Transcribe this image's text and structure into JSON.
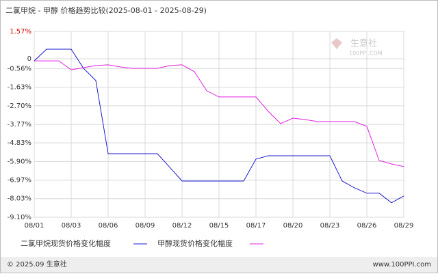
{
  "chart_data": {
    "type": "line",
    "title": "二氯甲烷 - 甲醇 价格趋势比较(2025-08-01 - 2025-08-29)",
    "categories": [
      "08/01",
      null,
      null,
      "08/03",
      null,
      null,
      "08/06",
      null,
      null,
      "08/09",
      null,
      null,
      "08/12",
      null,
      null,
      "08/15",
      null,
      null,
      "08/17",
      null,
      null,
      "08/20",
      null,
      null,
      "08/23",
      null,
      null,
      "08/26",
      null,
      null,
      "08/29"
    ],
    "series": [
      {
        "name": "二氯甲烷现货价格变化幅度",
        "color": "#1a1acc",
        "values": [
          -0.12,
          0.55,
          0.55,
          0.55,
          -0.55,
          -1.25,
          -5.45,
          -5.45,
          -5.45,
          -5.45,
          -5.45,
          -6.23,
          -7.02,
          -7.02,
          -7.02,
          -7.02,
          -7.02,
          -7.02,
          -5.76,
          -5.57,
          -5.57,
          -5.57,
          -5.57,
          -5.57,
          -5.57,
          -7.02,
          -7.41,
          -7.72,
          -7.72,
          -8.27,
          -7.88
        ]
      },
      {
        "name": "甲醇现货价格变化幅度",
        "color": "#e020e0",
        "values": [
          -0.12,
          -0.12,
          -0.12,
          -0.63,
          -0.51,
          -0.39,
          -0.35,
          -0.47,
          -0.55,
          -0.55,
          -0.55,
          -0.39,
          -0.35,
          -0.74,
          -1.84,
          -2.19,
          -2.19,
          -2.19,
          -2.19,
          -3.02,
          -3.72,
          -3.41,
          -3.49,
          -3.61,
          -3.61,
          -3.61,
          -3.61,
          -3.88,
          -5.84,
          -6.04,
          -6.19
        ]
      }
    ],
    "ylim": [
      -9.1,
      1.57
    ],
    "yticks": [
      {
        "value": 1.57,
        "label": "1.57%"
      },
      0,
      {
        "value": -0.56,
        "label": "-0.56%"
      },
      {
        "value": -1.63,
        "label": "-1.63%"
      },
      {
        "value": -2.7,
        "label": "-2.70%"
      },
      {
        "value": -3.77,
        "label": "-3.77%"
      },
      {
        "value": -4.83,
        "label": "-4.83%"
      },
      {
        "value": -5.9,
        "label": "-5.90%"
      },
      {
        "value": -6.97,
        "label": "-6.97%"
      },
      {
        "value": -8.03,
        "label": "-8.03%"
      },
      {
        "value": -9.1,
        "label": "-9.10%"
      }
    ],
    "grid": true,
    "watermark": {
      "name": "生意社",
      "site": "100PPI.COM"
    },
    "footer": {
      "left": "© 2025.09 生意社",
      "right": "www.100PPI.com"
    }
  }
}
